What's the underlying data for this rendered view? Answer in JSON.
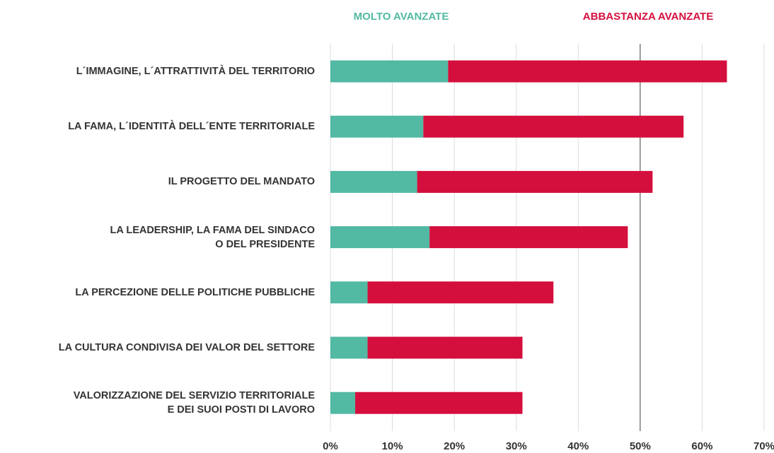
{
  "chart_data": {
    "type": "stacked_bar_horizontal",
    "categories": [
      "L´IMMAGINE, L´ATTRATTIVITÀ DEL TERRITORIO",
      "LA FAMA, L´IDENTITÀ DELL´ENTE TERRITORIALE",
      "IL PROGETTO DEL MANDATO",
      "LA LEADERSHIP, LA FAMA DEL SINDACO\nO DEL PRESIDENTE",
      "LA PERCEZIONE DELLE POLITICHE PUBBLICHE",
      "LA CULTURA CONDIVISA DEI VALOR DEL SETTORE",
      "VALORIZZAZIONE DEL SERVIZIO TERRITORIALE\nE DEI SUOI POSTI DI LAVORO"
    ],
    "series": [
      {
        "name": "MOLTO AVANZATE",
        "color": "#52b9a3",
        "values": [
          19,
          15,
          14,
          16,
          6,
          6,
          4
        ]
      },
      {
        "name": "ABBASTANZA AVANZATE",
        "color": "#d50f3d",
        "values": [
          45,
          42,
          38,
          32,
          30,
          25,
          27
        ]
      }
    ],
    "xlim": [
      0,
      70
    ],
    "xticks": [
      {
        "value": 0,
        "label": "0%"
      },
      {
        "value": 10,
        "label": "10%"
      },
      {
        "value": 20,
        "label": "20%"
      },
      {
        "value": 30,
        "label": "30%"
      },
      {
        "value": 40,
        "label": "40%"
      },
      {
        "value": 50,
        "label": "50%"
      },
      {
        "value": 60,
        "label": "60%"
      },
      {
        "value": 70,
        "label": "70%"
      }
    ],
    "grid": true,
    "reference_line": 50,
    "legend": "top"
  }
}
